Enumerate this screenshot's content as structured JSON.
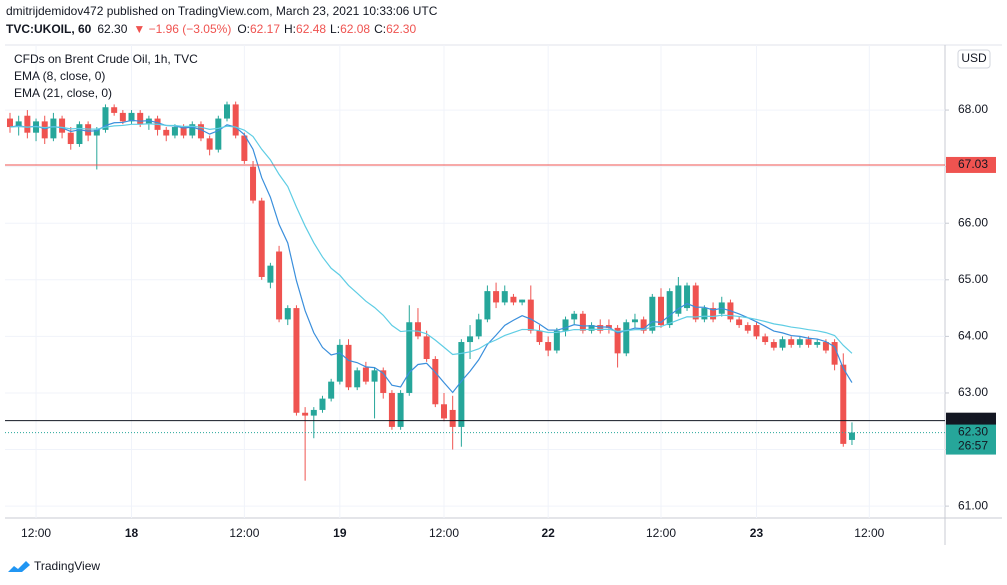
{
  "header": {
    "author_line": "dmitrijdemidov472 published on TradingView.com, March 23, 2021 10:33:06 UTC",
    "symbol": "TVC:UKOIL, 60",
    "last": "62.30",
    "change": "▼ −1.96 (−3.05%)",
    "quote": [
      {
        "label": "O:",
        "value": "62.17"
      },
      {
        "label": "H:",
        "value": "62.48"
      },
      {
        "label": "L:",
        "value": "62.08"
      },
      {
        "label": "C:",
        "value": "62.30"
      }
    ]
  },
  "footer": {
    "brand": "TradingView"
  },
  "chart_data": {
    "type": "candlestick",
    "title": "CFDs on Brent Crude Oil, 1h, TVC",
    "currency": "USD",
    "up_color": "#26a69a",
    "down_color": "#ef5350",
    "grid": true,
    "ylim": [
      60.79,
      69.15
    ],
    "yticks": [
      {
        "value": 61,
        "label": "61.00"
      },
      {
        "value": 62,
        "label": "62.00"
      },
      {
        "value": 63,
        "label": "63.00"
      },
      {
        "value": 64,
        "label": "64.00"
      },
      {
        "value": 65,
        "label": "65.00"
      },
      {
        "value": 66,
        "label": "66.00"
      },
      {
        "value": 67,
        "label": "67.00"
      },
      {
        "value": 68,
        "label": "68.00"
      }
    ],
    "categories": [
      null,
      null,
      null,
      "12:00",
      null,
      null,
      null,
      null,
      null,
      null,
      null,
      null,
      null,
      null,
      "18",
      null,
      null,
      null,
      null,
      null,
      null,
      null,
      null,
      null,
      null,
      null,
      null,
      "12:00",
      null,
      null,
      null,
      null,
      null,
      null,
      null,
      null,
      null,
      null,
      "19",
      null,
      null,
      null,
      null,
      null,
      null,
      null,
      null,
      null,
      null,
      null,
      "12:00",
      null,
      null,
      null,
      null,
      null,
      null,
      null,
      null,
      null,
      null,
      null,
      "22",
      null,
      null,
      null,
      null,
      null,
      null,
      null,
      null,
      null,
      null,
      null,
      null,
      "12:00",
      null,
      null,
      null,
      null,
      null,
      null,
      null,
      null,
      null,
      null,
      "23",
      null,
      null,
      null,
      null,
      null,
      null,
      null,
      null,
      null,
      null,
      null,
      null,
      "12:00"
    ],
    "ohlc": [
      [
        67.85,
        67.95,
        67.6,
        67.7
      ],
      [
        67.7,
        67.9,
        67.55,
        67.8
      ],
      [
        67.9,
        68.0,
        67.5,
        67.6
      ],
      [
        67.6,
        67.85,
        67.45,
        67.8
      ],
      [
        67.8,
        67.9,
        67.4,
        67.5
      ],
      [
        67.5,
        67.95,
        67.45,
        67.85
      ],
      [
        67.85,
        67.9,
        67.5,
        67.6
      ],
      [
        67.6,
        67.7,
        67.3,
        67.4
      ],
      [
        67.4,
        67.8,
        67.35,
        67.75
      ],
      [
        67.75,
        67.8,
        67.45,
        67.55
      ],
      [
        67.55,
        67.7,
        66.95,
        67.65
      ],
      [
        67.65,
        68.1,
        67.6,
        68.05
      ],
      [
        68.05,
        68.1,
        67.9,
        67.95
      ],
      [
        67.95,
        68.0,
        67.75,
        67.8
      ],
      [
        67.8,
        68.0,
        67.75,
        67.95
      ],
      [
        67.95,
        68.0,
        67.7,
        67.75
      ],
      [
        67.75,
        67.9,
        67.65,
        67.85
      ],
      [
        67.85,
        67.9,
        67.55,
        67.65
      ],
      [
        67.65,
        67.7,
        67.45,
        67.55
      ],
      [
        67.55,
        67.75,
        67.5,
        67.7
      ],
      [
        67.7,
        67.75,
        67.5,
        67.55
      ],
      [
        67.55,
        67.8,
        67.5,
        67.75
      ],
      [
        67.75,
        67.8,
        67.45,
        67.5
      ],
      [
        67.5,
        67.55,
        67.2,
        67.3
      ],
      [
        67.3,
        67.9,
        67.25,
        67.85
      ],
      [
        67.85,
        68.15,
        67.8,
        68.1
      ],
      [
        68.1,
        68.15,
        67.5,
        67.55
      ],
      [
        67.55,
        67.6,
        67.05,
        67.1
      ],
      [
        67.0,
        67.1,
        66.35,
        66.4
      ],
      [
        66.4,
        66.45,
        65.0,
        65.05
      ],
      [
        64.95,
        65.3,
        64.85,
        65.25
      ],
      [
        65.5,
        65.6,
        64.25,
        64.3
      ],
      [
        64.3,
        64.55,
        64.2,
        64.5
      ],
      [
        64.5,
        64.55,
        62.6,
        62.65
      ],
      [
        62.65,
        62.75,
        61.45,
        62.6
      ],
      [
        62.6,
        62.75,
        62.2,
        62.7
      ],
      [
        62.7,
        62.95,
        62.65,
        62.9
      ],
      [
        62.9,
        63.25,
        62.85,
        63.2
      ],
      [
        63.2,
        63.95,
        63.15,
        63.85
      ],
      [
        63.85,
        63.95,
        63.05,
        63.1
      ],
      [
        63.1,
        63.45,
        63.05,
        63.4
      ],
      [
        63.45,
        63.55,
        63.15,
        63.2
      ],
      [
        63.2,
        63.45,
        62.55,
        63.4
      ],
      [
        63.4,
        63.45,
        62.9,
        63.0
      ],
      [
        63.0,
        63.05,
        62.35,
        62.4
      ],
      [
        62.4,
        63.05,
        62.35,
        63.0
      ],
      [
        63.0,
        64.55,
        62.95,
        64.25
      ],
      [
        64.25,
        64.5,
        63.95,
        64.0
      ],
      [
        64.0,
        64.1,
        63.55,
        63.6
      ],
      [
        63.6,
        63.65,
        62.75,
        62.8
      ],
      [
        62.8,
        63.0,
        62.5,
        62.55
      ],
      [
        62.7,
        62.95,
        62.0,
        62.4
      ],
      [
        62.4,
        63.95,
        62.05,
        63.9
      ],
      [
        63.9,
        64.2,
        63.6,
        64.0
      ],
      [
        64.0,
        64.4,
        63.95,
        64.3
      ],
      [
        64.3,
        64.9,
        64.25,
        64.8
      ],
      [
        64.8,
        64.95,
        64.5,
        64.6
      ],
      [
        64.6,
        64.9,
        64.55,
        64.8
      ],
      [
        64.7,
        64.75,
        64.55,
        64.6
      ],
      [
        64.6,
        64.65,
        64.55,
        64.65
      ],
      [
        64.65,
        64.9,
        64.05,
        64.1
      ],
      [
        64.1,
        64.2,
        63.85,
        63.9
      ],
      [
        63.9,
        64.0,
        63.65,
        63.75
      ],
      [
        63.75,
        64.15,
        63.7,
        64.1
      ],
      [
        64.1,
        64.35,
        64.0,
        64.3
      ],
      [
        64.3,
        64.45,
        64.2,
        64.4
      ],
      [
        64.4,
        64.45,
        64.05,
        64.1
      ],
      [
        64.1,
        64.25,
        64.05,
        64.2
      ],
      [
        64.2,
        64.3,
        64.05,
        64.1
      ],
      [
        64.2,
        64.3,
        64.05,
        64.15
      ],
      [
        64.15,
        64.2,
        63.45,
        63.7
      ],
      [
        63.7,
        64.3,
        63.65,
        64.25
      ],
      [
        64.25,
        64.4,
        64.15,
        64.3
      ],
      [
        64.3,
        64.35,
        64.05,
        64.1
      ],
      [
        64.1,
        64.75,
        64.05,
        64.7
      ],
      [
        64.7,
        64.85,
        64.15,
        64.2
      ],
      [
        64.2,
        64.85,
        64.15,
        64.8
      ],
      [
        64.4,
        65.05,
        64.35,
        64.9
      ],
      [
        64.5,
        64.95,
        64.45,
        64.9
      ],
      [
        64.9,
        64.95,
        64.25,
        64.3
      ],
      [
        64.3,
        64.55,
        64.25,
        64.5
      ],
      [
        64.5,
        64.6,
        64.25,
        64.3
      ],
      [
        64.4,
        64.7,
        64.35,
        64.6
      ],
      [
        64.6,
        64.65,
        64.25,
        64.3
      ],
      [
        64.3,
        64.35,
        64.15,
        64.2
      ],
      [
        64.2,
        64.25,
        64.05,
        64.1
      ],
      [
        64.2,
        64.25,
        63.95,
        64.0
      ],
      [
        64.0,
        64.05,
        63.85,
        63.9
      ],
      [
        63.9,
        63.95,
        63.75,
        63.8
      ],
      [
        63.8,
        64.0,
        63.75,
        63.95
      ],
      [
        63.95,
        64.0,
        63.8,
        63.85
      ],
      [
        63.85,
        64.0,
        63.8,
        63.95
      ],
      [
        63.95,
        64.0,
        63.8,
        63.85
      ],
      [
        63.85,
        63.95,
        63.8,
        63.9
      ],
      [
        63.9,
        63.95,
        63.7,
        63.75
      ],
      [
        63.9,
        63.95,
        63.4,
        63.5
      ],
      [
        63.5,
        63.7,
        62.05,
        62.1
      ],
      [
        62.17,
        62.48,
        62.08,
        62.3
      ],
      null,
      null
    ],
    "indicators": [
      {
        "name": "EMA (8, close, 0)",
        "period": 8,
        "color": "#3a8fdc"
      },
      {
        "name": "EMA (21, close, 0)",
        "period": 21,
        "color": "#5fcde4"
      }
    ],
    "price_lines": [
      {
        "price": 67.03,
        "color": "#ef5350",
        "style": "solid"
      },
      {
        "price": 62.51,
        "color": "#131722",
        "style": "solid"
      },
      {
        "price": {
          "value": 62.3,
          "label": "62.30"
        },
        "color": "#26a69a",
        "style": "dotted",
        "countdown": "26:57"
      }
    ]
  }
}
